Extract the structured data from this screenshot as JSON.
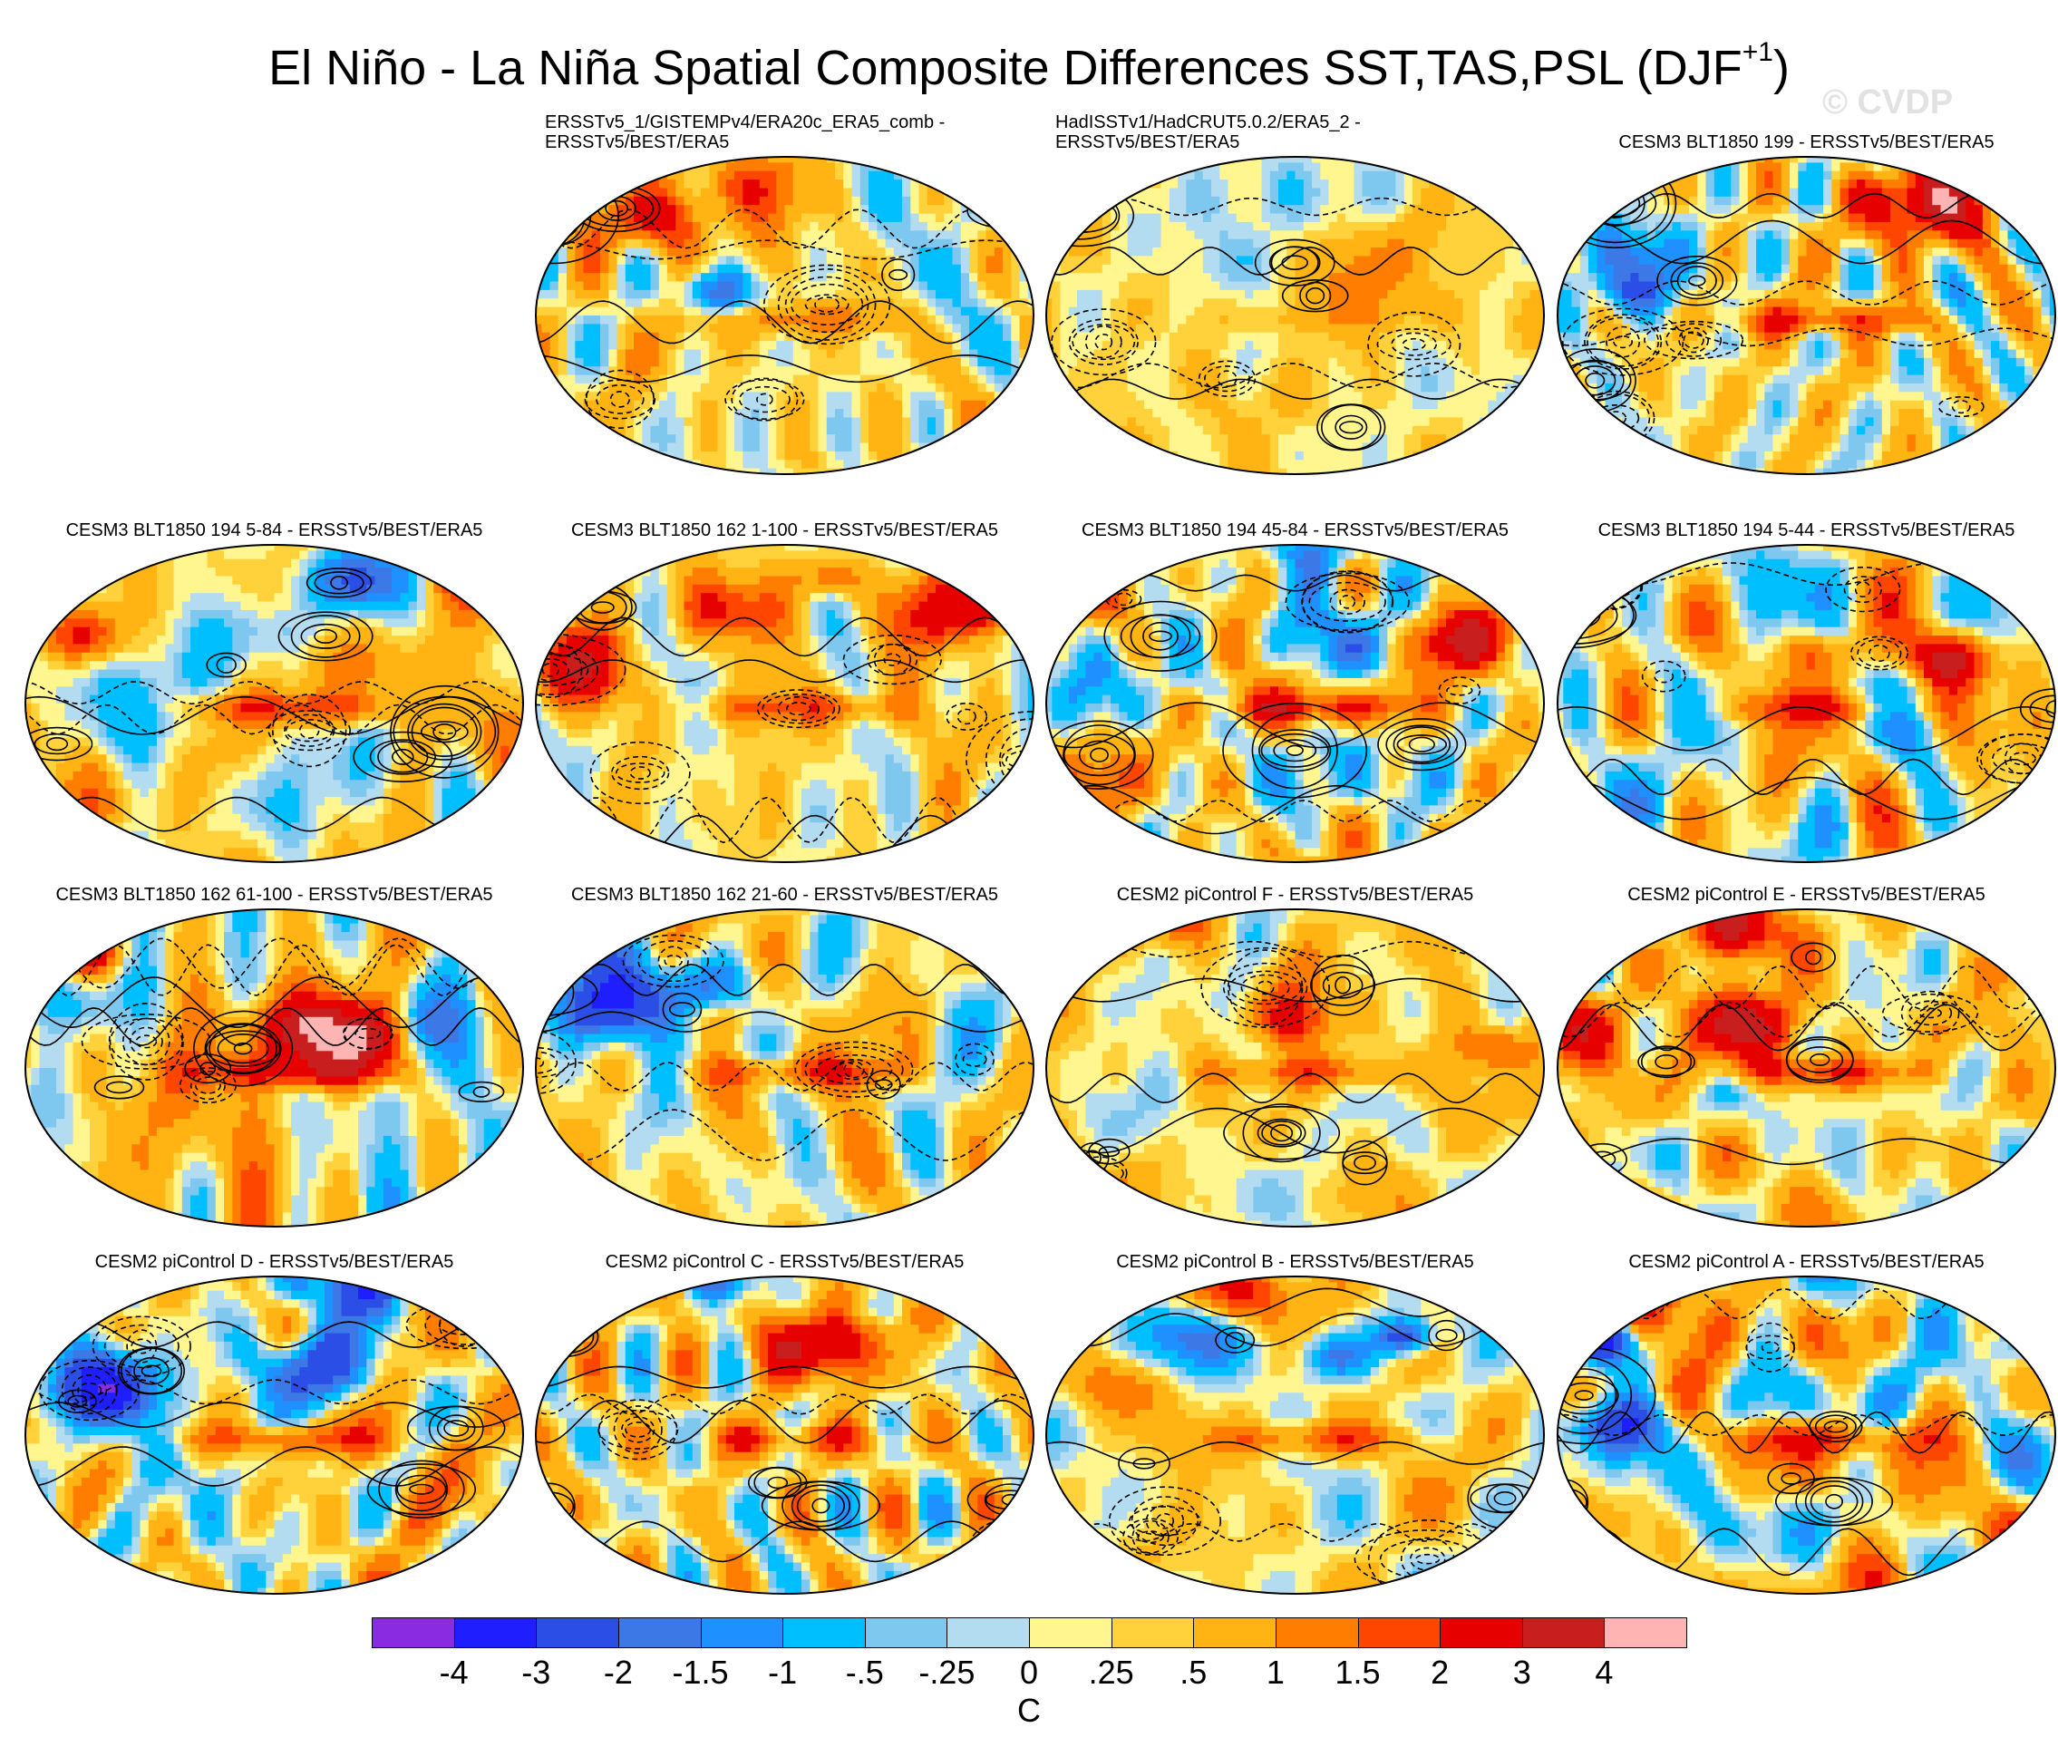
{
  "title": "El Niño - La Niña Spatial Composite Differences SST,TAS,PSL (DJF",
  "title_superscript": "+1",
  "title_close": ")",
  "watermark": "© CVDP",
  "panels": [
    {
      "title": "ERSSTv5_1/GISTEMPv4/ERA20c_ERA5_comb -\nERSSTv5/BEST/ERA5",
      "row": 0,
      "col": 1,
      "seed": 11,
      "amp": 0.9
    },
    {
      "title": "HadISSTv1/HadCRUT5.0.2/ERA5_2 -\nERSSTv5/BEST/ERA5",
      "row": 0,
      "col": 2,
      "seed": 23,
      "amp": 0.4
    },
    {
      "title": "CESM3 BLT1850 199 - ERSSTv5/BEST/ERA5",
      "row": 0,
      "col": 3,
      "seed": 37,
      "amp": 1.3
    },
    {
      "title": "CESM3 BLT1850 194 5-84 - ERSSTv5/BEST/ERA5",
      "row": 1,
      "col": 0,
      "seed": 41,
      "amp": 1.2
    },
    {
      "title": "CESM3 BLT1850 162 1-100 - ERSSTv5/BEST/ERA5",
      "row": 1,
      "col": 1,
      "seed": 53,
      "amp": 1.1
    },
    {
      "title": "CESM3 BLT1850 194 45-84 - ERSSTv5/BEST/ERA5",
      "row": 1,
      "col": 2,
      "seed": 67,
      "amp": 1.4
    },
    {
      "title": "CESM3 BLT1850 194 5-44 - ERSSTv5/BEST/ERA5",
      "row": 1,
      "col": 3,
      "seed": 71,
      "amp": 1.1
    },
    {
      "title": "CESM3 BLT1850 162 61-100 - ERSSTv5/BEST/ERA5",
      "row": 2,
      "col": 0,
      "seed": 83,
      "amp": 1.4
    },
    {
      "title": "CESM3 BLT1850 162 21-60 - ERSSTv5/BEST/ERA5",
      "row": 2,
      "col": 1,
      "seed": 97,
      "amp": 1.3
    },
    {
      "title": "CESM2 piControl F - ERSSTv5/BEST/ERA5",
      "row": 2,
      "col": 2,
      "seed": 101,
      "amp": 1.1
    },
    {
      "title": "CESM2 piControl E - ERSSTv5/BEST/ERA5",
      "row": 2,
      "col": 3,
      "seed": 113,
      "amp": 1.4
    },
    {
      "title": "CESM2 piControl D - ERSSTv5/BEST/ERA5",
      "row": 3,
      "col": 0,
      "seed": 127,
      "amp": 1.3
    },
    {
      "title": "CESM2 piControl C - ERSSTv5/BEST/ERA5",
      "row": 3,
      "col": 1,
      "seed": 131,
      "amp": 1.1
    },
    {
      "title": "CESM2 piControl B - ERSSTv5/BEST/ERA5",
      "row": 3,
      "col": 2,
      "seed": 149,
      "amp": 1.2
    },
    {
      "title": "CESM2 piControl A - ERSSTv5/BEST/ERA5",
      "row": 3,
      "col": 3,
      "seed": 151,
      "amp": 1.3
    }
  ],
  "colorbar": {
    "colors": [
      "#8a2be2",
      "#1e1eff",
      "#2b4fe6",
      "#3c78e6",
      "#1f90ff",
      "#00bfff",
      "#7ec8f0",
      "#b4dcf0",
      "#fff68f",
      "#ffd23c",
      "#ffb414",
      "#ff7d00",
      "#ff4600",
      "#e60000",
      "#c81e1e",
      "#ffb4b4"
    ],
    "ticks": [
      "-4",
      "-3",
      "-2",
      "-1.5",
      "-1",
      "-.5",
      "-.25",
      "0",
      ".25",
      ".5",
      "1",
      "1.5",
      "2",
      "3",
      "4"
    ],
    "unit": "C"
  },
  "colors": {
    "land_outline": "#9a9a9a",
    "contour": "#000000",
    "map_border": "#000000"
  }
}
